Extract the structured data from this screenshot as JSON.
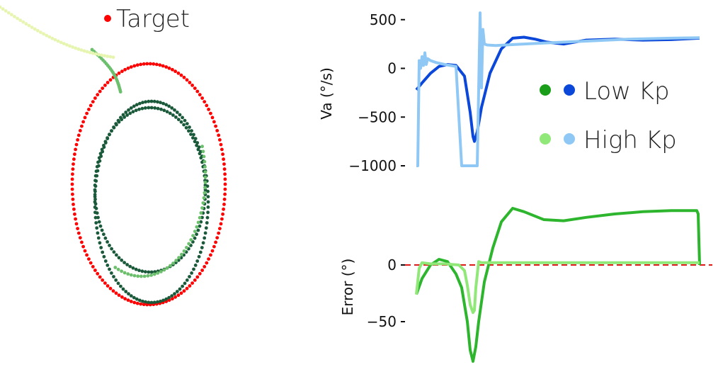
{
  "chart_data": [
    {
      "type": "scatter",
      "panel": "trajectory",
      "legend": [
        {
          "label": "Target",
          "color": "#ff0000"
        }
      ],
      "series": [
        {
          "name": "Target",
          "color": "#ff0000",
          "shape": "ellipse",
          "cx": 210,
          "cy": 260,
          "rx": 108,
          "ry": 170,
          "points": 150
        },
        {
          "color": "#1a5a3a",
          "shape": "ellipse",
          "cx": 212,
          "cy": 268,
          "rx": 78,
          "ry": 116,
          "points": 110
        },
        {
          "color": "#1a5a3a",
          "shape": "ellipse",
          "cx": 214,
          "cy": 285,
          "rx": 80,
          "ry": 142,
          "points": 120
        },
        {
          "color": "#6cbf6c",
          "shape": "approach",
          "points": 70
        },
        {
          "color": "#e6f5b0",
          "shape": "tail",
          "points": 40
        }
      ],
      "grid": false
    },
    {
      "type": "line",
      "panel": "velocity",
      "ylabel": "Va (°/s)",
      "yticks": [
        500,
        0,
        -500,
        -1000
      ],
      "ylim": [
        -1000,
        600
      ],
      "legend": [
        {
          "label": "Low Kp",
          "colors": [
            "#1a9e1a",
            "#0b47d9"
          ]
        },
        {
          "label": "High Kp",
          "colors": [
            "#90e878",
            "#8fc8f5"
          ]
        }
      ],
      "series": [
        {
          "label": "Low Kp",
          "color": "#0b47d9",
          "x": [
            0.0,
            0.02,
            0.05,
            0.08,
            0.11,
            0.14,
            0.17,
            0.19,
            0.2,
            0.205,
            0.215,
            0.23,
            0.26,
            0.3,
            0.34,
            0.38,
            0.42,
            0.46,
            0.52,
            0.6,
            0.7,
            0.8,
            0.9,
            1.0
          ],
          "y": [
            -220,
            -150,
            -50,
            20,
            40,
            30,
            -80,
            -450,
            -700,
            -750,
            -650,
            -400,
            -50,
            200,
            310,
            320,
            300,
            270,
            250,
            290,
            300,
            290,
            295,
            310
          ]
        },
        {
          "label": "High Kp",
          "color": "#8fc8f5",
          "x": [
            0.0,
            0.005,
            0.01,
            0.015,
            0.02,
            0.025,
            0.03,
            0.035,
            0.04,
            0.05,
            0.07,
            0.1,
            0.12,
            0.14,
            0.16,
            0.18,
            0.19,
            0.2,
            0.205,
            0.21,
            0.215,
            0.225,
            0.23,
            0.235,
            0.24,
            0.25,
            0.28,
            0.35,
            0.45,
            0.6,
            0.75,
            0.9,
            1.0
          ],
          "y": [
            -1000,
            -1000,
            80,
            0,
            120,
            30,
            160,
            40,
            100,
            80,
            60,
            40,
            30,
            20,
            -1000,
            -1000,
            -1000,
            -1000,
            -1000,
            -1000,
            -1000,
            570,
            -200,
            400,
            250,
            240,
            235,
            245,
            260,
            280,
            300,
            310,
            315
          ]
        }
      ],
      "grid": false
    },
    {
      "type": "line",
      "panel": "error",
      "ylabel": "Error (°)",
      "yticks": [
        0,
        -50
      ],
      "ylim": [
        -85,
        55
      ],
      "reference_line": {
        "y": 0,
        "color": "#e01818",
        "style": "dashed"
      },
      "series": [
        {
          "label": "Low Kp",
          "color": "#2db52d",
          "x": [
            0.0,
            0.02,
            0.05,
            0.08,
            0.11,
            0.14,
            0.16,
            0.18,
            0.19,
            0.2,
            0.21,
            0.22,
            0.24,
            0.27,
            0.3,
            0.34,
            0.38,
            0.45,
            0.52,
            0.6,
            0.7,
            0.8,
            0.9,
            0.99,
            0.995,
            1.0
          ],
          "y": [
            -26,
            -12,
            0,
            5,
            3,
            -8,
            -20,
            -50,
            -75,
            -85,
            -72,
            -50,
            -15,
            15,
            38,
            50,
            47,
            40,
            39,
            42,
            45,
            47,
            48,
            48,
            45,
            0
          ]
        },
        {
          "label": "High Kp",
          "color": "#90e878",
          "x": [
            0.0,
            0.01,
            0.02,
            0.05,
            0.1,
            0.15,
            0.17,
            0.18,
            0.19,
            0.2,
            0.205,
            0.21,
            0.22,
            0.23,
            0.25,
            0.3,
            0.4,
            0.6,
            0.8,
            1.0
          ],
          "y": [
            -26,
            -3,
            2,
            1,
            1,
            0,
            -5,
            -18,
            -35,
            -42,
            -40,
            -20,
            3,
            2,
            2,
            2,
            2,
            2,
            2,
            2
          ]
        }
      ],
      "grid": false
    }
  ]
}
